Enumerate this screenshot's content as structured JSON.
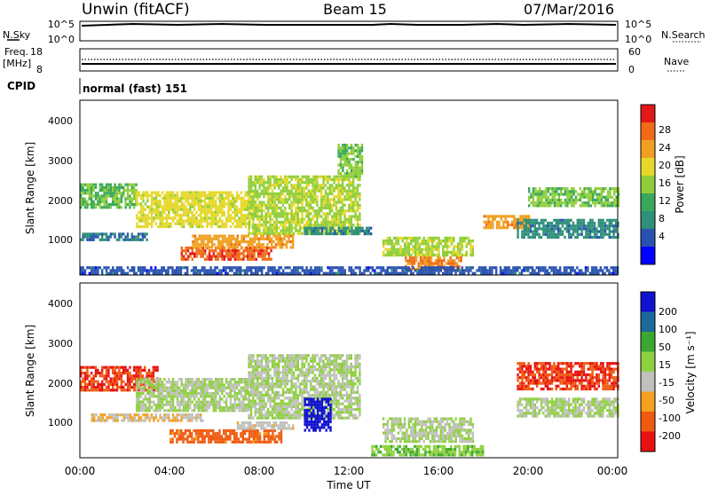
{
  "header": {
    "radar": "Unwin (fitACF)",
    "beam": "Beam 15",
    "date": "07/Mar/2016"
  },
  "top_panels": {
    "nsky_label": "N.Sky",
    "nsearch_label": "N.Search",
    "count_ticks_left": [
      "10^5",
      "10^0"
    ],
    "count_ticks_right": [
      "10^5",
      "10^0"
    ],
    "freq_label_1": "Freq.",
    "freq_label_2": "[MHz]",
    "freq_ticks": [
      "18",
      "8"
    ],
    "nave_label": "Nave",
    "nave_ticks": [
      "60",
      "0"
    ],
    "cpid_label": "CPID",
    "cpid_value": "normal (fast) 151"
  },
  "axes": {
    "ylabel": "Slant Range [km]",
    "xlabel": "Time UT",
    "y_ticks": [
      "4000",
      "3000",
      "2000",
      "1000"
    ],
    "x_ticks": [
      "00:00",
      "04:00",
      "08:00",
      "12:00",
      "16:00",
      "20:00",
      "00:00"
    ]
  },
  "colorbars": {
    "power": {
      "label": "Power [dB]",
      "ticks": [
        "28",
        "24",
        "20",
        "16",
        "12",
        "8",
        "4"
      ],
      "colors": [
        "#0000ff",
        "#2952b0",
        "#2f8f7a",
        "#3aa85a",
        "#8fce3a",
        "#e5d82a",
        "#f0a020",
        "#f06a18",
        "#e01818"
      ]
    },
    "velocity": {
      "label": "Velocity [m s⁻¹]",
      "ticks": [
        "200",
        "100",
        "50",
        "15",
        "-15",
        "-50",
        "-100",
        "-200"
      ],
      "colors": [
        "#e81010",
        "#f05a10",
        "#f5a020",
        "#c0c0bc",
        "#8fd040",
        "#3aa830",
        "#1a6a9a",
        "#1010d0"
      ]
    }
  },
  "chart_data": [
    {
      "type": "heatmap",
      "title": "Power",
      "x": [
        "00:00",
        "04:00",
        "08:00",
        "12:00",
        "16:00",
        "20:00",
        "00:00"
      ],
      "ylabel": "Slant Range [km]",
      "xlabel": "Time UT",
      "ylim": [
        180,
        4600
      ],
      "colorbar_range": [
        0,
        30
      ],
      "regions": [
        {
          "t0": 0.0,
          "t1": 2.5,
          "r0": 1900,
          "r1": 2500,
          "value": 13
        },
        {
          "t0": 0.0,
          "t1": 3.0,
          "r0": 1100,
          "r1": 1250,
          "value": 7
        },
        {
          "t0": 2.5,
          "t1": 7.8,
          "r0": 1400,
          "r1": 2300,
          "value": 18
        },
        {
          "t0": 4.5,
          "t1": 8.5,
          "r0": 600,
          "r1": 900,
          "value": 26
        },
        {
          "t0": 5.0,
          "t1": 9.5,
          "r0": 900,
          "r1": 1200,
          "value": 22
        },
        {
          "t0": 7.5,
          "t1": 12.5,
          "r0": 1200,
          "r1": 2700,
          "value": 16
        },
        {
          "t0": 11.5,
          "t1": 12.6,
          "r0": 2700,
          "r1": 3500,
          "value": 14
        },
        {
          "t0": 10.0,
          "t1": 13.0,
          "r0": 1200,
          "r1": 1400,
          "value": 8
        },
        {
          "t0": 13.5,
          "t1": 17.5,
          "r0": 650,
          "r1": 1150,
          "value": 16
        },
        {
          "t0": 14.5,
          "t1": 17.0,
          "r0": 350,
          "r1": 650,
          "value": 24
        },
        {
          "t0": 18.0,
          "t1": 20.0,
          "r0": 1400,
          "r1": 1700,
          "value": 22
        },
        {
          "t0": 20.0,
          "t1": 24.0,
          "r0": 1900,
          "r1": 2400,
          "value": 14
        },
        {
          "t0": 19.5,
          "t1": 24.0,
          "r0": 1100,
          "r1": 1600,
          "value": 8
        },
        {
          "t0": 0.0,
          "t1": 24.0,
          "r0": 200,
          "r1": 400,
          "value": 5
        }
      ]
    },
    {
      "type": "heatmap",
      "title": "Velocity",
      "x": [
        "00:00",
        "04:00",
        "08:00",
        "12:00",
        "16:00",
        "20:00",
        "00:00"
      ],
      "ylabel": "Slant Range [km]",
      "xlabel": "Time UT",
      "ylim": [
        180,
        4600
      ],
      "colorbar_range": [
        -200,
        200
      ],
      "regions": [
        {
          "t0": 0.0,
          "t1": 3.5,
          "r0": 1900,
          "r1": 2500,
          "value": -150
        },
        {
          "t0": 2.5,
          "t1": 7.5,
          "r0": 1400,
          "r1": 2200,
          "value": 0
        },
        {
          "t0": 0.5,
          "t1": 5.5,
          "r0": 1100,
          "r1": 1300,
          "value": -50
        },
        {
          "t0": 4.0,
          "t1": 9.0,
          "r0": 550,
          "r1": 900,
          "value": -120
        },
        {
          "t0": 7.0,
          "t1": 9.5,
          "r0": 900,
          "r1": 1100,
          "value": -30
        },
        {
          "t0": 7.5,
          "t1": 12.5,
          "r0": 1200,
          "r1": 2800,
          "value": 0
        },
        {
          "t0": 10.0,
          "t1": 11.2,
          "r0": 900,
          "r1": 1700,
          "value": 200
        },
        {
          "t0": 13.5,
          "t1": 17.5,
          "r0": 600,
          "r1": 1200,
          "value": 0
        },
        {
          "t0": 13.0,
          "t1": 18.0,
          "r0": 250,
          "r1": 500,
          "value": 40
        },
        {
          "t0": 19.5,
          "t1": 24.0,
          "r0": 1900,
          "r1": 2600,
          "value": -150
        },
        {
          "t0": 19.5,
          "t1": 24.0,
          "r0": 1200,
          "r1": 1700,
          "value": 0
        }
      ]
    }
  ]
}
